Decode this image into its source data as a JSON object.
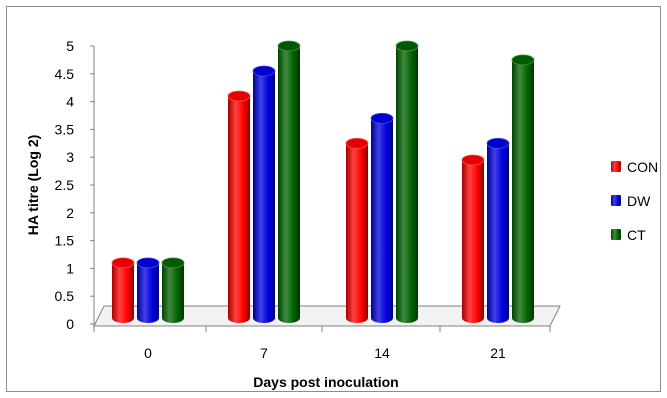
{
  "chart_data": {
    "type": "bar",
    "categories": [
      "0",
      "7",
      "14",
      "21"
    ],
    "series": [
      {
        "name": "CON",
        "values": [
          1.1,
          4.1,
          3.25,
          2.95
        ],
        "color": "#ff0000"
      },
      {
        "name": "DW",
        "values": [
          1.1,
          4.55,
          3.7,
          3.25
        ],
        "color": "#0000e0"
      },
      {
        "name": "CT",
        "values": [
          1.1,
          5.0,
          5.0,
          4.75
        ],
        "color": "#006400"
      }
    ],
    "y_ticks": [
      "0",
      "0.5",
      "1",
      "1.5",
      "2",
      "2.5",
      "3",
      "3.5",
      "4",
      "4.5",
      "5"
    ],
    "xlabel": "Days post inoculation",
    "ylabel": "HA titre (Log 2)",
    "ylim": [
      0,
      5
    ],
    "grid": false,
    "legend_position": "right",
    "style": "3d-cylinder"
  }
}
